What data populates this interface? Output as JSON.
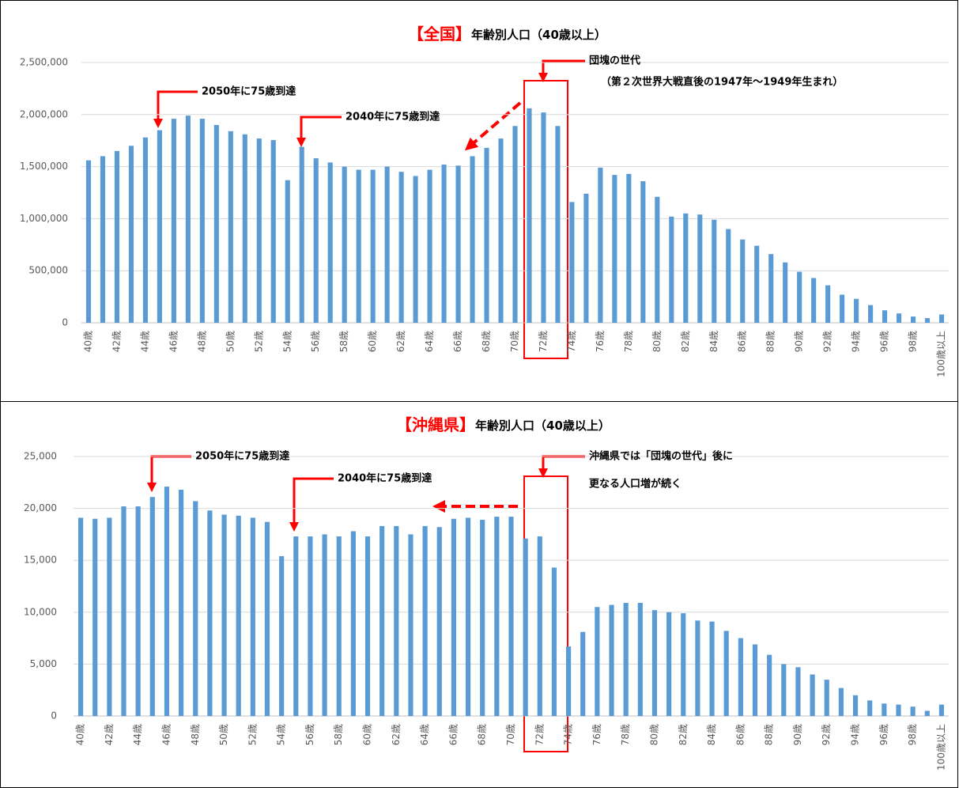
{
  "chart_data": [
    {
      "type": "bar",
      "title_highlight": "【全国】",
      "title": "年齢別人口（40歳以上）",
      "categories": [
        "40歳",
        null,
        "42歳",
        null,
        "44歳",
        null,
        "46歳",
        null,
        "48歳",
        null,
        "50歳",
        null,
        "52歳",
        null,
        "54歳",
        null,
        "56歳",
        null,
        "58歳",
        null,
        "60歳",
        null,
        "62歳",
        null,
        "64歳",
        null,
        "66歳",
        null,
        "68歳",
        null,
        "70歳",
        null,
        "72歳",
        null,
        "74歳",
        null,
        "76歳",
        null,
        "78歳",
        null,
        "80歳",
        null,
        "82歳",
        null,
        "84歳",
        null,
        "86歳",
        null,
        "88歳",
        null,
        "90歳",
        null,
        "92歳",
        null,
        "94歳",
        null,
        "96歳",
        null,
        "98歳",
        null,
        "100歳以上"
      ],
      "values": [
        1560000,
        1600000,
        1650000,
        1700000,
        1780000,
        1850000,
        1960000,
        1990000,
        1960000,
        1900000,
        1840000,
        1810000,
        1770000,
        1755000,
        1370000,
        1690000,
        1580000,
        1540000,
        1500000,
        1470000,
        1470000,
        1500000,
        1450000,
        1410000,
        1470000,
        1520000,
        1510000,
        1600000,
        1680000,
        1770000,
        1890000,
        2060000,
        2020000,
        1890000,
        1160000,
        1240000,
        1490000,
        1420000,
        1430000,
        1360000,
        1210000,
        1020000,
        1050000,
        1040000,
        990000,
        900000,
        800000,
        740000,
        660000,
        580000,
        490000,
        430000,
        360000,
        270000,
        230000,
        170000,
        120000,
        90000,
        60000,
        45000,
        80000
      ],
      "color": "#5b9bd5",
      "ylim": [
        0,
        2500000
      ],
      "yticks": [
        0,
        {
          "value": 500000,
          "label": "500,000"
        },
        {
          "value": 1000000,
          "label": "1,000,000"
        },
        {
          "value": 1500000,
          "label": "1,500,000"
        },
        {
          "value": 2000000,
          "label": "2,000,000"
        },
        {
          "value": 2500000,
          "label": "2,500,000"
        }
      ],
      "grid": true,
      "annotations": [
        "2050年に75歳到達",
        "2040年に75歳到達",
        "団塊の世代",
        "（第２次世界大戦直後の1947年～1949年生まれ）"
      ]
    },
    {
      "type": "bar",
      "title_highlight": "【沖縄県】",
      "title": "年齢別人口（40歳以上）",
      "categories": [
        "40歳",
        null,
        "42歳",
        null,
        "44歳",
        null,
        "46歳",
        null,
        "48歳",
        null,
        "50歳",
        null,
        "52歳",
        null,
        "54歳",
        null,
        "56歳",
        null,
        "58歳",
        null,
        "60歳",
        null,
        "62歳",
        null,
        "64歳",
        null,
        "66歳",
        null,
        "68歳",
        null,
        "70歳",
        null,
        "72歳",
        null,
        "74歳",
        null,
        "76歳",
        null,
        "78歳",
        null,
        "80歳",
        null,
        "82歳",
        null,
        "84歳",
        null,
        "86歳",
        null,
        "88歳",
        null,
        "90歳",
        null,
        "92歳",
        null,
        "94歳",
        null,
        "96歳",
        null,
        "98歳",
        null,
        "100歳以上"
      ],
      "values": [
        19100,
        19000,
        19100,
        20200,
        20200,
        21100,
        22100,
        21800,
        20700,
        19800,
        19400,
        19300,
        19100,
        18700,
        15400,
        17300,
        17300,
        17500,
        17300,
        17800,
        17300,
        18300,
        18300,
        17500,
        18300,
        18200,
        19000,
        19100,
        18900,
        19200,
        19200,
        17100,
        17300,
        14300,
        6700,
        8100,
        10500,
        10700,
        10900,
        10900,
        10200,
        10000,
        9900,
        9200,
        9100,
        8200,
        7500,
        6900,
        5900,
        5000,
        4700,
        4000,
        3500,
        2700,
        2000,
        1500,
        1200,
        1100,
        900,
        500,
        1100
      ],
      "color": "#5b9bd5",
      "ylim": [
        0,
        25000
      ],
      "yticks": [
        0,
        {
          "value": 5000,
          "label": "5,000"
        },
        {
          "value": 10000,
          "label": "10,000"
        },
        {
          "value": 15000,
          "label": "15,000"
        },
        {
          "value": 20000,
          "label": "20,000"
        },
        {
          "value": 25000,
          "label": "25,000"
        }
      ],
      "grid": true,
      "annotations": [
        "2050年に75歳到達",
        "2040年に75歳到達",
        "沖縄県では「団塊の世代」後に",
        "更なる人口増が続く"
      ]
    }
  ]
}
